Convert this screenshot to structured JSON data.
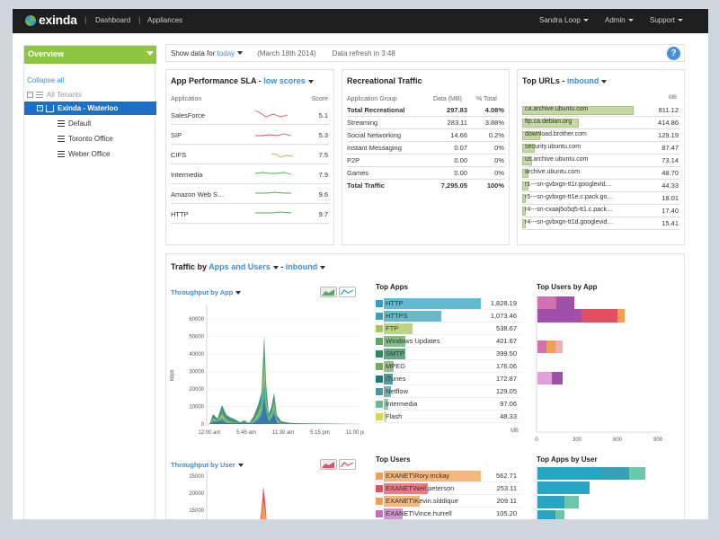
{
  "brand": {
    "name": "exinda"
  },
  "nav": {
    "dashboard": "Dashboard",
    "appliances": "Appliances",
    "user": "Sandra Loop",
    "admin": "Admin",
    "support": "Support"
  },
  "sidebar": {
    "overview": "Overview",
    "collapse_all": "Collapse all",
    "tree": [
      {
        "label": "All Tenants"
      },
      {
        "label": "Exinda - Waterloo"
      },
      {
        "label": "Default"
      },
      {
        "label": "Toronto Office"
      },
      {
        "label": "Weber Office"
      }
    ]
  },
  "filter": {
    "prefix": "Show data for",
    "period": "today",
    "date": "(March 18th 2014)",
    "refresh": "Data refresh in 3:48",
    "help": "?"
  },
  "app_sla": {
    "title": "App Performance SLA -",
    "title_link": "low scores",
    "col_app": "Application",
    "col_score": "Score",
    "rows": [
      {
        "name": "SalesForce",
        "score": "5.1",
        "color": "#e05050"
      },
      {
        "name": "SIP",
        "score": "5.3",
        "color": "#e05050"
      },
      {
        "name": "CIFS",
        "score": "7.5",
        "color": "#e0a050"
      },
      {
        "name": "Intermedia",
        "score": "7.9",
        "color": "#4caf50"
      },
      {
        "name": "Amazon Web S…",
        "score": "9.6",
        "color": "#4caf50"
      },
      {
        "name": "HTTP",
        "score": "9.7",
        "color": "#4caf50"
      }
    ]
  },
  "recreational": {
    "title": "Recreational Traffic",
    "col_group": "Application Group",
    "col_data": "Data (MB)",
    "col_pct": "% Total",
    "rows": [
      {
        "group": "Total Recreational",
        "data": "297.83",
        "pct": "4.08%"
      },
      {
        "group": "Streaming",
        "data": "283.11",
        "pct": "3.88%"
      },
      {
        "group": "Social Networking",
        "data": "14.66",
        "pct": "0.2%"
      },
      {
        "group": "Instant Messaging",
        "data": "0.07",
        "pct": "0%"
      },
      {
        "group": "P2P",
        "data": "0.00",
        "pct": "0%"
      },
      {
        "group": "Games",
        "data": "0.00",
        "pct": "0%"
      },
      {
        "group": "Total Traffic",
        "data": "7,295.05",
        "pct": "100%"
      }
    ]
  },
  "top_urls": {
    "title": "Top URLs -",
    "title_link": "inbound",
    "unit": "MB",
    "rows": [
      {
        "url": "ca.archive.ubuntu.com",
        "value": "811.12",
        "frac": 1.0
      },
      {
        "url": "ftp.ca.debian.org",
        "value": "414.86",
        "frac": 0.51
      },
      {
        "url": "download.brother.com",
        "value": "129.19",
        "frac": 0.16
      },
      {
        "url": "security.ubuntu.com",
        "value": "87.47",
        "frac": 0.11
      },
      {
        "url": "us.archive.ubuntu.com",
        "value": "73.14",
        "frac": 0.09
      },
      {
        "url": "archive.ubuntu.com",
        "value": "48.70",
        "frac": 0.06
      },
      {
        "url": "r1---sn-gvbxgn-tt1r.googlevid…",
        "value": "44.33",
        "frac": 0.055
      },
      {
        "url": "r5---sn-gvbxgn-tt1e.c.pack.go…",
        "value": "18.01",
        "frac": 0.02
      },
      {
        "url": "r4---sn-cxaaj5o5q5-tt1.c.pack…",
        "value": "17.40",
        "frac": 0.02
      },
      {
        "url": "r4---sn-gvbxgn-tt1d.googlevid…",
        "value": "15.41",
        "frac": 0.02
      }
    ]
  },
  "traffic": {
    "title_prefix": "Traffic by",
    "mode": "Apps and Users",
    "dash": "-",
    "direction": "inbound",
    "throughput_app": "Throughput by App",
    "throughput_user": "Throughput by User",
    "ylabel": "kbps",
    "yticks_app": [
      "60000",
      "50000",
      "40000",
      "30000",
      "20000",
      "10000",
      "0"
    ],
    "yticks_user": [
      "25000",
      "20000",
      "15000"
    ],
    "xticks": [
      "12:00 am",
      "5:45 am",
      "11:30 am",
      "5:15 pm",
      "11:00 pm"
    ],
    "top_apps_title": "Top Apps",
    "top_apps_unit": "MB",
    "top_apps": [
      {
        "name": "HTTP",
        "value": "1,828.19",
        "color": "#2aa4c4",
        "frac": 1.0
      },
      {
        "name": "HTTPS",
        "value": "1,073.46",
        "color": "#3aa0b8",
        "frac": 0.59
      },
      {
        "name": "FTP",
        "value": "538.67",
        "color": "#a6c65a",
        "frac": 0.3
      },
      {
        "name": "Windows Updates",
        "value": "401.67",
        "color": "#5aa860",
        "frac": 0.22
      },
      {
        "name": "SMTP",
        "value": "399.50",
        "color": "#2d8a5e",
        "frac": 0.22
      },
      {
        "name": "MPEG",
        "value": "176.06",
        "color": "#7aa85a",
        "frac": 0.1
      },
      {
        "name": "iTunes",
        "value": "172.87",
        "color": "#1f7a7a",
        "frac": 0.09
      },
      {
        "name": "Netflow",
        "value": "129.05",
        "color": "#4a9a9a",
        "frac": 0.07
      },
      {
        "name": "Intermedia",
        "value": "97.06",
        "color": "#6ab890",
        "frac": 0.05
      },
      {
        "name": "Flash",
        "value": "48.33",
        "color": "#d8d84a",
        "frac": 0.03
      }
    ],
    "top_users_by_app_title": "Top Users by App",
    "users_axis": [
      "0",
      "300",
      "600",
      "900"
    ],
    "top_users_title": "Top Users",
    "top_users": [
      {
        "name": "EXANET\\Rory.mckay",
        "value": "562.71",
        "color": "#f0a050",
        "frac": 1.0
      },
      {
        "name": "EXANET\\Neil.peterson",
        "value": "253.11",
        "color": "#e05060",
        "frac": 0.45
      },
      {
        "name": "EXANET\\Kevin.siddique",
        "value": "209.11",
        "color": "#f0a050",
        "frac": 0.37
      },
      {
        "name": "EXANET\\Vince.hurrell",
        "value": "105.20",
        "color": "#c070c0",
        "frac": 0.19
      }
    ],
    "top_apps_by_user_title": "Top Apps by User"
  },
  "colors": {
    "accent_green": "#8dc63f",
    "select_blue": "#1d70c4",
    "link_blue": "#3b8ed8"
  }
}
